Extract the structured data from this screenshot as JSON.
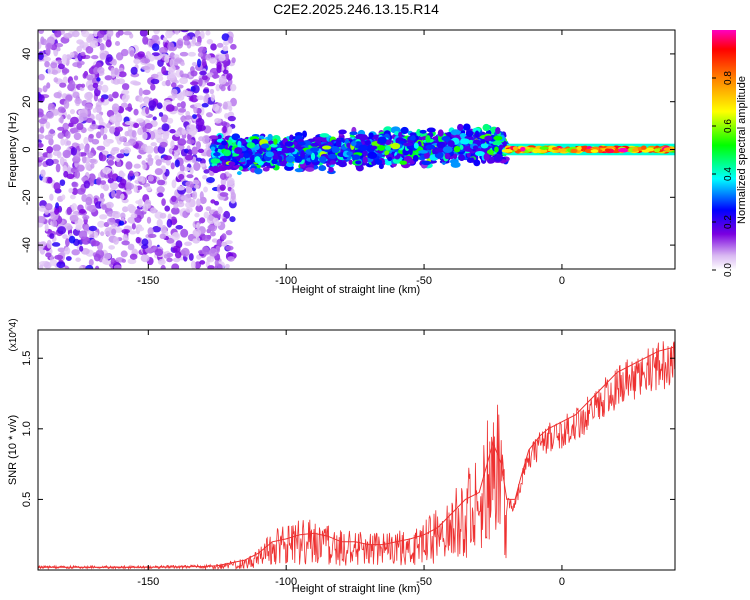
{
  "title": "C2E2.2025.246.13.15.R14",
  "chart_data": [
    {
      "type": "heatmap",
      "title": "C2E2.2025.246.13.15.R14",
      "xlabel": "Height of straight line (km)",
      "ylabel": "Frequency (Hz)",
      "xlim": [
        -190,
        41
      ],
      "ylim": [
        -50,
        50
      ],
      "xticks": [
        -150,
        -100,
        -50,
        0
      ],
      "yticks": [
        -40,
        -20,
        0,
        20,
        40
      ],
      "colorbar": {
        "label": "Normalized spectral amplitude",
        "range": [
          0,
          1
        ],
        "ticks": [
          0.0,
          0.2,
          0.4,
          0.6,
          0.8
        ]
      },
      "regions": [
        {
          "name": "noise",
          "x_range": [
            -190,
            -127
          ],
          "freq_range": [
            -50,
            50
          ],
          "amplitude": 0.12
        },
        {
          "name": "broadband echo",
          "x_range": [
            -127,
            -20
          ],
          "freq_range": [
            -7,
            7
          ],
          "amplitude": 0.3
        },
        {
          "name": "narrow echo",
          "x_range": [
            -20,
            41
          ],
          "freq_range": [
            -2,
            2
          ],
          "amplitude": 0.9
        }
      ]
    },
    {
      "type": "line",
      "xlabel": "Height of straight line (km)",
      "ylabel": "SNR (10 * v/v)",
      "y_multiplier": "(x10^4)",
      "xlim": [
        -190,
        41
      ],
      "ylim": [
        0,
        1.7
      ],
      "xticks": [
        -150,
        -100,
        -50,
        0
      ],
      "yticks": [
        0.5,
        1.0,
        1.5
      ],
      "ytick_labels": [
        "0.5",
        "1.0",
        "1.5"
      ],
      "series": [
        {
          "name": "SNR",
          "color": "#ee3030",
          "x": [
            -190,
            -170,
            -150,
            -130,
            -125,
            -120,
            -115,
            -110,
            -105,
            -100,
            -95,
            -90,
            -85,
            -80,
            -75,
            -70,
            -65,
            -60,
            -55,
            -50,
            -45,
            -40,
            -35,
            -30,
            -25,
            -22,
            -20,
            -17,
            -15,
            -12,
            -10,
            -8,
            -5,
            0,
            5,
            10,
            15,
            20,
            25,
            30,
            35,
            41
          ],
          "y": [
            0.02,
            0.02,
            0.02,
            0.025,
            0.03,
            0.05,
            0.07,
            0.12,
            0.2,
            0.22,
            0.25,
            0.26,
            0.24,
            0.2,
            0.2,
            0.18,
            0.18,
            0.2,
            0.22,
            0.25,
            0.3,
            0.4,
            0.5,
            0.55,
            0.9,
            0.75,
            0.5,
            0.5,
            0.65,
            0.85,
            0.9,
            0.95,
            1.0,
            1.05,
            1.1,
            1.2,
            1.3,
            1.4,
            1.45,
            1.5,
            1.55,
            1.58
          ]
        }
      ]
    }
  ]
}
